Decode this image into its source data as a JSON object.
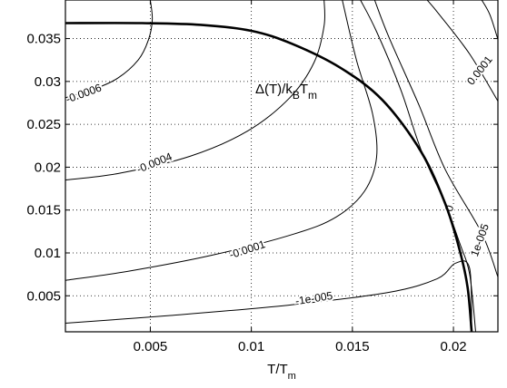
{
  "chart_data": {
    "type": "contour",
    "title": "",
    "xlabel": {
      "main": "T/T",
      "sub": "m"
    },
    "ylabel": "",
    "xlim": [
      0.0008,
      0.0222
    ],
    "ylim": [
      0.0008,
      0.0395
    ],
    "grid": true,
    "x_ticks": [
      {
        "value": 0.005,
        "label": "0.005"
      },
      {
        "value": 0.01,
        "label": "0.01"
      },
      {
        "value": 0.015,
        "label": "0.015"
      },
      {
        "value": 0.02,
        "label": "0.02"
      }
    ],
    "y_ticks": [
      {
        "value": 0.005,
        "label": "0.005"
      },
      {
        "value": 0.01,
        "label": "0.01"
      },
      {
        "value": 0.015,
        "label": "0.015"
      },
      {
        "value": 0.02,
        "label": "0.02"
      },
      {
        "value": 0.025,
        "label": "0.025"
      },
      {
        "value": 0.03,
        "label": "0.03"
      },
      {
        "value": 0.035,
        "label": "0.035"
      }
    ],
    "annotation": {
      "main": "Δ(T)/k",
      "sub1": "B",
      "mid": "T",
      "sub2": "m"
    },
    "gap_curve": {
      "name": "Δ(T)/kBTm",
      "points": [
        [
          0.0008,
          0.0368
        ],
        [
          0.0046,
          0.0368
        ],
        [
          0.0075,
          0.0366
        ],
        [
          0.01,
          0.0359
        ],
        [
          0.012,
          0.0344
        ],
        [
          0.0144,
          0.0316
        ],
        [
          0.0165,
          0.0278
        ],
        [
          0.0184,
          0.0218
        ],
        [
          0.0196,
          0.0157
        ],
        [
          0.0203,
          0.0104
        ],
        [
          0.0207,
          0.006
        ],
        [
          0.0209,
          0.0008
        ]
      ]
    },
    "contours": [
      {
        "level": "-0.0006",
        "points": [
          [
            0.0008,
            0.0281
          ],
          [
            0.0022,
            0.0291
          ],
          [
            0.0034,
            0.0304
          ],
          [
            0.0044,
            0.0325
          ],
          [
            0.0049,
            0.0348
          ],
          [
            0.0051,
            0.0372
          ],
          [
            0.005,
            0.0395
          ]
        ],
        "label": {
          "text": "-0.0006",
          "x": 0.0017,
          "y": 0.0286,
          "angle": -20
        }
      },
      {
        "level": "-0.0004",
        "points": [
          [
            0.0008,
            0.0185
          ],
          [
            0.0035,
            0.0193
          ],
          [
            0.007,
            0.0213
          ],
          [
            0.0098,
            0.0242
          ],
          [
            0.0119,
            0.0281
          ],
          [
            0.0131,
            0.0322
          ],
          [
            0.0136,
            0.0365
          ],
          [
            0.0136,
            0.0395
          ]
        ],
        "label": {
          "text": "-0.0004",
          "x": 0.0052,
          "y": 0.0205,
          "angle": -22
        }
      },
      {
        "level": "-0.0001",
        "points": [
          [
            0.0008,
            0.0068
          ],
          [
            0.004,
            0.0079
          ],
          [
            0.008,
            0.0097
          ],
          [
            0.0121,
            0.0122
          ],
          [
            0.0142,
            0.0142
          ],
          [
            0.0156,
            0.0172
          ],
          [
            0.0162,
            0.0212
          ],
          [
            0.016,
            0.0262
          ],
          [
            0.0152,
            0.0325
          ],
          [
            0.0145,
            0.0395
          ]
        ],
        "label": {
          "text": "-0.0001",
          "x": 0.0098,
          "y": 0.0104,
          "angle": -18
        }
      },
      {
        "level": "-1e-005",
        "points": [
          [
            0.0008,
            0.0018
          ],
          [
            0.006,
            0.0027
          ],
          [
            0.0118,
            0.0039
          ],
          [
            0.0168,
            0.0054
          ],
          [
            0.0192,
            0.007
          ],
          [
            0.0201,
            0.0088
          ],
          [
            0.0208,
            0.0082
          ],
          [
            0.0209,
            0.0008
          ]
        ],
        "label": {
          "text": "-1e-005",
          "x": 0.0131,
          "y": 0.0047,
          "angle": -9
        }
      },
      {
        "level": "0",
        "points": [
          [
            0.0211,
            0.0008
          ],
          [
            0.0208,
            0.0075
          ],
          [
            0.0203,
            0.0112
          ],
          [
            0.0196,
            0.0157
          ],
          [
            0.0184,
            0.022
          ],
          [
            0.0174,
            0.029
          ],
          [
            0.0162,
            0.0358
          ],
          [
            0.0154,
            0.0395
          ]
        ],
        "label": {
          "text": "0",
          "x": 0.0198,
          "y": 0.0152,
          "angle": -75
        }
      },
      {
        "level": "1e-005",
        "points": [
          [
            0.0222,
            0.0072
          ],
          [
            0.0214,
            0.0123
          ],
          [
            0.0196,
            0.0197
          ],
          [
            0.0183,
            0.0272
          ],
          [
            0.0168,
            0.0352
          ],
          [
            0.0161,
            0.0395
          ]
        ],
        "label": {
          "text": "1e-005",
          "x": 0.0213,
          "y": 0.0115,
          "angle": -70
        }
      },
      {
        "level": "0.0001",
        "points": [
          [
            0.0222,
            0.0277
          ],
          [
            0.0208,
            0.0332
          ],
          [
            0.0193,
            0.0378
          ],
          [
            0.0187,
            0.0395
          ]
        ],
        "label": {
          "text": "0.0001",
          "x": 0.0213,
          "y": 0.0313,
          "angle": -52
        }
      },
      {
        "level": "",
        "points": [
          [
            0.0222,
            0.0349
          ],
          [
            0.0218,
            0.0378
          ],
          [
            0.0214,
            0.0395
          ]
        ],
        "label": null
      }
    ]
  }
}
